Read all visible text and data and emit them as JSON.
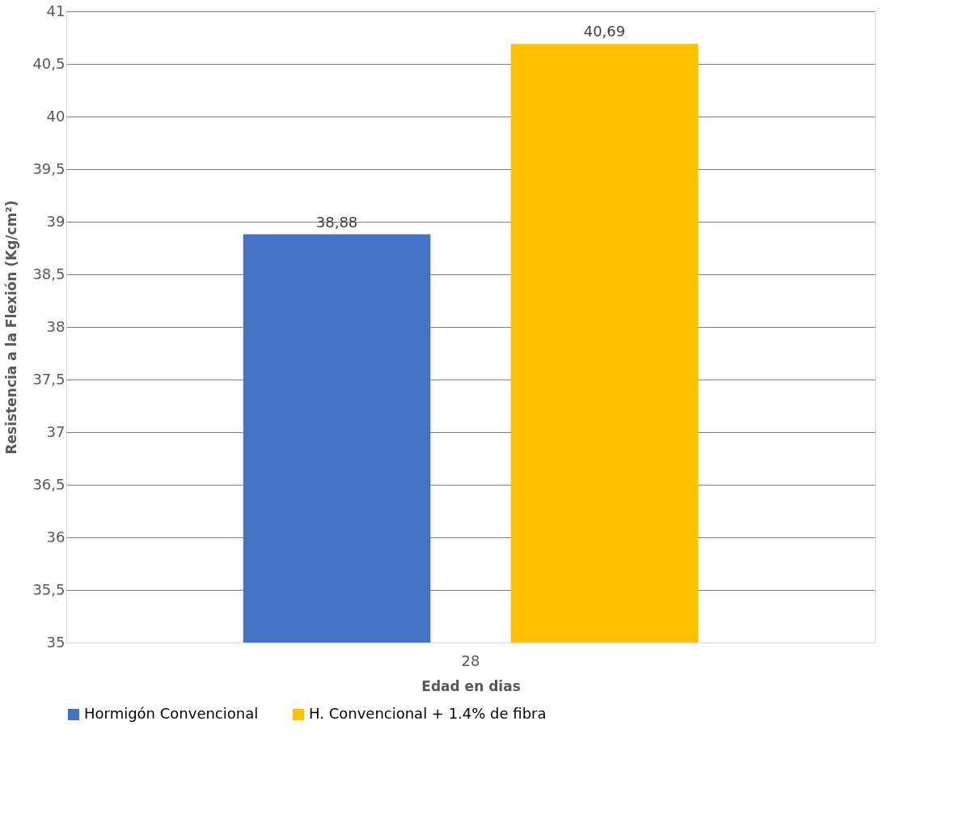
{
  "chart_data": {
    "type": "bar",
    "categories": [
      "28"
    ],
    "series": [
      {
        "name": "Hormigón Convencional",
        "color": "#4472c4",
        "values": [
          38.88
        ],
        "value_labels": [
          "38,88"
        ]
      },
      {
        "name": "H. Convencional + 1.4% de fibra",
        "color": "#ffc000",
        "values": [
          40.69
        ],
        "value_labels": [
          "40,69"
        ]
      }
    ],
    "xlabel": "Edad en dias",
    "ylabel": "Resistencia a la Flexión (Kg/cm²)",
    "ylim": [
      35,
      41
    ],
    "yticks": [
      35,
      {
        "value": 35.5,
        "label": "35,5"
      },
      36,
      {
        "value": 36.5,
        "label": "36,5"
      },
      37,
      {
        "value": 37.5,
        "label": "37,5"
      },
      38,
      {
        "value": 38.5,
        "label": "38,5"
      },
      39,
      {
        "value": 39.5,
        "label": "39,5"
      },
      40,
      {
        "value": 40.5,
        "label": "40,5"
      },
      41
    ],
    "grid": "y",
    "legend": "bottom"
  }
}
